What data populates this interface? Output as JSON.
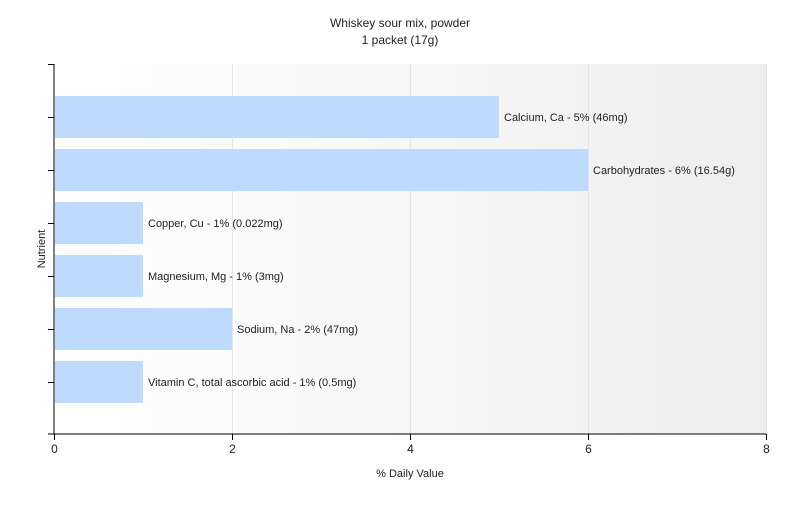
{
  "chart_data": {
    "type": "bar",
    "orientation": "horizontal",
    "title": "Whiskey sour mix, powder",
    "subtitle": "1 packet (17g)",
    "xlabel": "% Daily Value",
    "ylabel": "Nutrient",
    "xlim": [
      0,
      8
    ],
    "xticks": [
      "0",
      "2",
      "4",
      "6",
      "8"
    ],
    "grid": true,
    "legend": "none",
    "categories": [
      "Calcium, Ca",
      "Carbohydrates",
      "Copper, Cu",
      "Magnesium, Mg",
      "Sodium, Na",
      "Vitamin C, total ascorbic acid"
    ],
    "values": [
      5,
      6,
      1,
      1,
      2,
      1
    ],
    "bar_labels": [
      "Calcium, Ca - 5% (46mg)",
      "Carbohydrates - 6% (16.54g)",
      "Copper, Cu - 1% (0.022mg)",
      "Magnesium, Mg - 1% (3mg)",
      "Sodium, Na - 2% (47mg)",
      "Vitamin C, total ascorbic acid - 1% (0.5mg)"
    ],
    "colors": {
      "bar": "#bfdaff",
      "axis": "#000000",
      "grid": "#e4e4e4",
      "plot_bg_start": "#ffffff",
      "plot_bg_end": "#eeeeee",
      "text": "#222222"
    }
  }
}
